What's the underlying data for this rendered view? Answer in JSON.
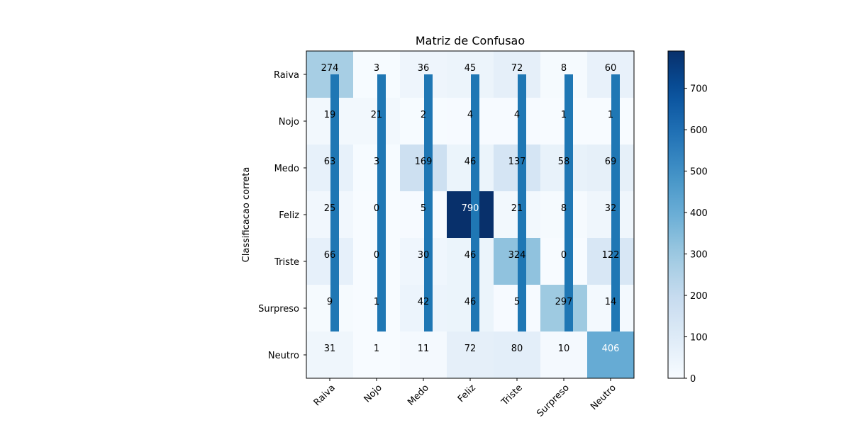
{
  "chart_data": {
    "type": "heatmap",
    "title": "Matriz de Confusao",
    "ylabel": "Classificacao correta",
    "xlabel": "",
    "categories": [
      "Raiva",
      "Nojo",
      "Medo",
      "Feliz",
      "Triste",
      "Surpreso",
      "Neutro"
    ],
    "matrix": [
      [
        274,
        3,
        36,
        45,
        72,
        8,
        60
      ],
      [
        19,
        21,
        2,
        4,
        4,
        1,
        1
      ],
      [
        63,
        3,
        169,
        46,
        137,
        58,
        69
      ],
      [
        25,
        0,
        5,
        790,
        21,
        8,
        32
      ],
      [
        66,
        0,
        30,
        46,
        324,
        0,
        122
      ],
      [
        9,
        1,
        42,
        46,
        5,
        297,
        14
      ],
      [
        31,
        1,
        11,
        72,
        80,
        10,
        406
      ]
    ],
    "colorbar": {
      "ticks": [
        0,
        100,
        200,
        300,
        400,
        500,
        600,
        700
      ],
      "vmin": 0,
      "vmax": 790
    },
    "overlay_bars": {
      "value_top": 5.5,
      "color": "#1f77b4"
    },
    "colormap": "Blues",
    "grid": false
  }
}
